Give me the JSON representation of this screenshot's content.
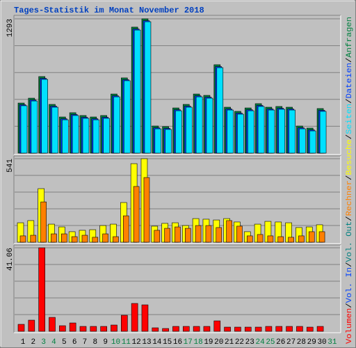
{
  "chart_data": [
    {
      "type": "bar",
      "title": "Tages-Statistik im Monat November 2018",
      "legend_separator": "/",
      "ylim": [
        0,
        1293
      ],
      "yticks": [
        1293
      ],
      "grid": true,
      "series": [
        {
          "name": "Anfragen",
          "color": "#008040",
          "values": [
            482,
            529,
            737,
            469,
            348,
            389,
            362,
            348,
            362,
            569,
            724,
            1213,
            1293,
            261,
            255,
            435,
            469,
            569,
            556,
            851,
            442,
            402,
            435,
            476,
            442,
            449,
            442,
            261,
            241,
            429,
            null
          ]
        },
        {
          "name": "Dateien",
          "color": "#0040ff",
          "values": [
            466,
            512,
            720,
            452,
            331,
            372,
            345,
            331,
            345,
            552,
            707,
            1195,
            1275,
            244,
            238,
            418,
            452,
            552,
            539,
            833,
            425,
            385,
            418,
            459,
            425,
            432,
            425,
            244,
            224,
            412,
            null
          ]
        },
        {
          "name": "Seiten",
          "color": "#00e0ff",
          "values": [
            456,
            502,
            710,
            442,
            321,
            362,
            335,
            321,
            335,
            542,
            697,
            1185,
            1265,
            234,
            228,
            408,
            442,
            542,
            529,
            823,
            415,
            375,
            408,
            449,
            415,
            422,
            415,
            234,
            214,
            402,
            null
          ]
        }
      ]
    },
    {
      "type": "bar",
      "ylim": [
        0,
        541
      ],
      "yticks": [
        541
      ],
      "grid": true,
      "series": [
        {
          "name": "Besuche",
          "color": "#ffff00",
          "values": [
            126,
            140,
            347,
            117,
            99,
            68,
            77,
            81,
            108,
            117,
            257,
            509,
            541,
            104,
            122,
            126,
            108,
            153,
            149,
            144,
            153,
            131,
            68,
            117,
            135,
            131,
            126,
            95,
            99,
            113,
            null
          ]
        },
        {
          "name": "Rechner",
          "color": "#ff8000",
          "values": [
            41,
            45,
            261,
            54,
            54,
            36,
            45,
            32,
            54,
            36,
            171,
            361,
            419,
            77,
            90,
            99,
            90,
            108,
            108,
            95,
            140,
            104,
            41,
            50,
            41,
            36,
            32,
            41,
            68,
            68,
            null
          ]
        }
      ]
    },
    {
      "type": "bar",
      "ylim": [
        0,
        41.06
      ],
      "yticks": [
        41.06
      ],
      "grid": true,
      "categories": [
        "1",
        "2",
        "3",
        "4",
        "5",
        "6",
        "7",
        "8",
        "9",
        "10",
        "11",
        "12",
        "13",
        "14",
        "15",
        "16",
        "17",
        "18",
        "19",
        "20",
        "21",
        "22",
        "23",
        "24",
        "25",
        "26",
        "27",
        "28",
        "29",
        "30",
        "31"
      ],
      "category_colors": [
        "#000000",
        "#000000",
        "#008040",
        "#008040",
        "#000000",
        "#000000",
        "#000000",
        "#000000",
        "#000000",
        "#008040",
        "#008040",
        "#000000",
        "#000000",
        "#000000",
        "#000000",
        "#000000",
        "#008040",
        "#008040",
        "#000000",
        "#000000",
        "#000000",
        "#000000",
        "#000000",
        "#008040",
        "#008040",
        "#000000",
        "#000000",
        "#000000",
        "#000000",
        "#000000",
        "#008040"
      ],
      "series": [
        {
          "name": "Volumen",
          "color": "#ff0000",
          "values": [
            3.42,
            5.47,
            41.06,
            6.84,
            2.74,
            4.1,
            2.4,
            2.4,
            2.4,
            3.08,
            7.87,
            13.69,
            13.0,
            1.71,
            1.37,
            2.4,
            2.4,
            2.4,
            2.4,
            5.13,
            2.05,
            2.05,
            2.05,
            2.05,
            2.4,
            2.4,
            2.4,
            2.4,
            2.05,
            2.4,
            null
          ]
        },
        {
          "name": "Vol. In",
          "color": "#0040ff",
          "values": [
            0,
            0,
            0,
            0,
            0,
            0,
            0,
            0,
            0,
            0,
            0,
            0,
            0,
            0,
            0,
            0,
            0,
            0,
            0,
            0,
            0,
            0,
            0,
            0,
            0,
            0,
            0,
            0,
            0,
            0,
            null
          ]
        },
        {
          "name": "Vol. Out",
          "color": "#008080",
          "values": [
            0,
            0,
            0,
            0,
            0,
            0,
            0,
            0,
            0,
            0,
            0,
            0,
            0,
            0,
            0,
            0,
            0,
            0,
            0,
            0,
            0,
            0,
            0,
            0,
            0,
            0,
            0,
            0,
            0,
            0,
            null
          ]
        }
      ]
    }
  ]
}
